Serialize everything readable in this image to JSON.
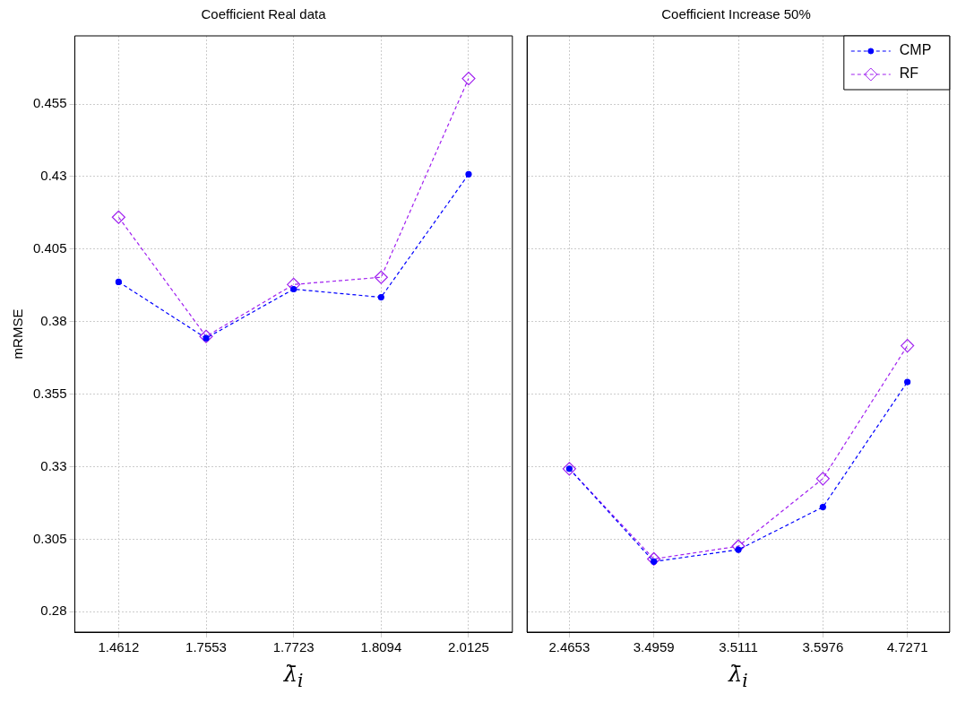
{
  "chart_data": [
    {
      "type": "line",
      "title": "Coefficient Real data",
      "xlabel": "λ̄$_{i}$",
      "ylabel": "mRMSE",
      "categories": [
        "1.4612",
        "1.7553",
        "1.7723",
        "1.8094",
        "2.0125"
      ],
      "ylim": [
        0.273,
        0.4785
      ],
      "yticks": [
        0.28,
        0.305,
        0.33,
        0.355,
        0.38,
        0.405,
        0.43,
        0.455
      ],
      "grid": true,
      "line_style": "dashed",
      "series": [
        {
          "color": "#0000ff",
          "marker": "circle",
          "values": [
            0.3937,
            0.3743,
            0.3912,
            0.3884,
            0.4308
          ]
        },
        {
          "color": "#a020f0",
          "marker": "diamond",
          "values": [
            0.416,
            0.3749,
            0.3928,
            0.3953,
            0.4638
          ]
        }
      ]
    },
    {
      "type": "line",
      "title": "Coefficient Increase 50%",
      "xlabel": "λ̄$_{i}$",
      "categories": [
        "2.4653",
        "3.4959",
        "3.5111",
        "3.5976",
        "4.7271"
      ],
      "ylim": [
        0.273,
        0.4785
      ],
      "yticks": [
        0.28,
        0.305,
        0.33,
        0.355,
        0.38,
        0.405,
        0.43,
        0.455
      ],
      "tick_labels": "x",
      "grid": true,
      "line_style": "dashed",
      "legend": "top right",
      "series": [
        {
          "name": "CMP",
          "color": "#0000ff",
          "marker": "circle",
          "values": [
            0.3293,
            0.2973,
            0.3014,
            0.3161,
            0.3592
          ]
        },
        {
          "name": "RF",
          "color": "#a020f0",
          "marker": "diamond",
          "values": [
            0.3293,
            0.2982,
            0.3026,
            0.3259,
            0.3717
          ]
        }
      ]
    }
  ]
}
